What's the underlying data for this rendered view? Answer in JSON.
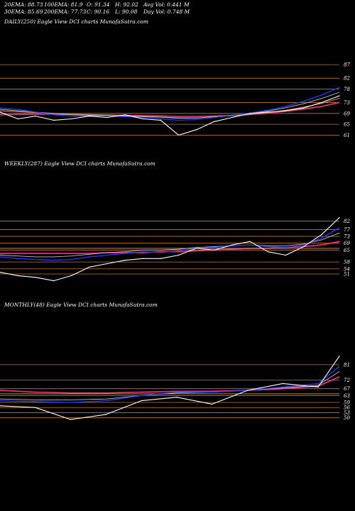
{
  "header": {
    "ema20": "20EMA: 88.73",
    "ema100": "100EMA: 81.9",
    "open": "O: 91.34",
    "high": "H: 92.02",
    "avgvol": "Avg Vol: 0.441 M",
    "ema30": "30EMA: 85.69",
    "ema200": "200EMA: 77.73",
    "close": "C: 90.16",
    "low": "L: 90.08",
    "dayvol": "Day Vol: 0.748  M"
  },
  "colors": {
    "background": "#000000",
    "price": "#ffffff",
    "fast_ma": "#1e3cff",
    "medium_ma": "#c0c0c0",
    "slow_ma": "#d4a054",
    "long_ma": "#ff2d8a",
    "level_lines": "#c8781e"
  },
  "chart_data": [
    {
      "type": "line",
      "title": "DAILY(250) Eagle  View  DCI charts MunafaSutra.com",
      "x": [
        0,
        13,
        26,
        39,
        52,
        65,
        78,
        91,
        104,
        117,
        130,
        143,
        156,
        169,
        182,
        195,
        208,
        221,
        234,
        247
      ],
      "yticks": [
        87,
        82,
        78,
        73,
        69,
        65,
        61
      ],
      "ylim": [
        59,
        92
      ],
      "series": [
        {
          "values": [
            69.5,
            67,
            68,
            66.5,
            67,
            68,
            67.5,
            68.5,
            67,
            66.5,
            61,
            63,
            66,
            67.5,
            69,
            69.5,
            70,
            71,
            73,
            75.5
          ]
        },
        {
          "values": [
            71,
            70.5,
            69.5,
            68.5,
            68,
            68,
            68,
            67.8,
            67.5,
            67,
            66.5,
            66.8,
            67.5,
            68.3,
            69.2,
            70.2,
            71.6,
            73.5,
            75.8,
            78.6
          ]
        },
        {
          "values": [
            70.5,
            70,
            69.5,
            69,
            68.5,
            68.3,
            68.2,
            68,
            67.8,
            67.6,
            67.2,
            67.3,
            67.8,
            68.4,
            69,
            69.9,
            71.1,
            72.6,
            74.5,
            76.8
          ]
        },
        {
          "values": [
            70,
            69.6,
            69.3,
            69,
            68.7,
            68.5,
            68.3,
            68.1,
            67.9,
            67.7,
            67.4,
            67.4,
            67.7,
            68.1,
            68.6,
            69.3,
            70.2,
            71.3,
            72.7,
            74.6
          ]
        },
        {
          "values": [
            68.5,
            68.6,
            68.7,
            68.7,
            68.6,
            68.5,
            68.4,
            68.3,
            68.2,
            68.1,
            67.9,
            67.9,
            68,
            68.2,
            68.6,
            69.1,
            69.8,
            70.6,
            71.6,
            73
          ]
        }
      ]
    },
    {
      "type": "line",
      "title": "WEEKLY(287) Eagle  View  DCI charts MunafaSutra.com",
      "x": [
        0,
        15,
        30,
        45,
        60,
        75,
        90,
        105,
        120,
        135,
        150,
        165,
        180,
        195,
        210,
        225,
        240,
        255,
        270,
        285
      ],
      "yticks": [
        82,
        77,
        73,
        69,
        65,
        58,
        54,
        51
      ],
      "ylim": [
        46,
        88
      ],
      "series": [
        {
          "values": [
            52,
            50,
            49,
            47,
            50,
            55,
            57,
            59,
            60,
            60,
            62,
            66,
            65,
            68,
            70,
            64,
            62,
            67,
            74,
            84
          ]
        },
        {
          "values": [
            61,
            60,
            59.5,
            59,
            59.5,
            61,
            62,
            63,
            64,
            63.5,
            64.5,
            66,
            66.5,
            67.5,
            68,
            67,
            66.5,
            68,
            72,
            78
          ]
        },
        {
          "values": [
            62,
            61.5,
            61,
            61,
            61.5,
            62.5,
            63.5,
            64,
            65,
            65,
            65.5,
            66.5,
            67,
            67.5,
            68,
            67.5,
            67.5,
            68.5,
            71,
            75
          ]
        },
        {
          "values": [
            66,
            66,
            66,
            66,
            66,
            66,
            66,
            66,
            66,
            66,
            66,
            66,
            66,
            66,
            66,
            66,
            66,
            66,
            66,
            66
          ]
        },
        {
          "values": [
            63,
            63,
            63,
            63,
            63,
            63,
            63.5,
            63.5,
            63.5,
            64,
            64,
            64.5,
            65,
            65.5,
            66,
            66,
            66.5,
            67,
            68,
            70
          ]
        }
      ]
    },
    {
      "type": "line",
      "title": "MONTHLY(48) Eagle  View  DCI charts MunafaSutra.com",
      "x": [
        0,
        5,
        10,
        15,
        20,
        25,
        30,
        35,
        40,
        45,
        48
      ],
      "yticks": [
        81,
        72,
        67,
        63,
        59,
        56,
        53,
        50
      ],
      "ylim": [
        42,
        88
      ],
      "series": [
        {
          "values": [
            57,
            56,
            49,
            52,
            60,
            62,
            58,
            66,
            70,
            68,
            86
          ]
        },
        {
          "values": [
            60,
            59.5,
            59,
            60,
            63,
            65,
            65,
            66,
            68,
            70,
            80
          ]
        },
        {
          "values": [
            61,
            60.5,
            60.5,
            61,
            63,
            64.5,
            65,
            66,
            67.5,
            69,
            77
          ]
        },
        {
          "values": [
            64,
            64,
            64,
            64,
            64,
            64,
            64,
            64,
            64,
            64,
            64
          ]
        },
        {
          "values": [
            66,
            65,
            64.5,
            64.5,
            65,
            65.5,
            65.5,
            66,
            67,
            68.5,
            74
          ]
        }
      ]
    }
  ]
}
